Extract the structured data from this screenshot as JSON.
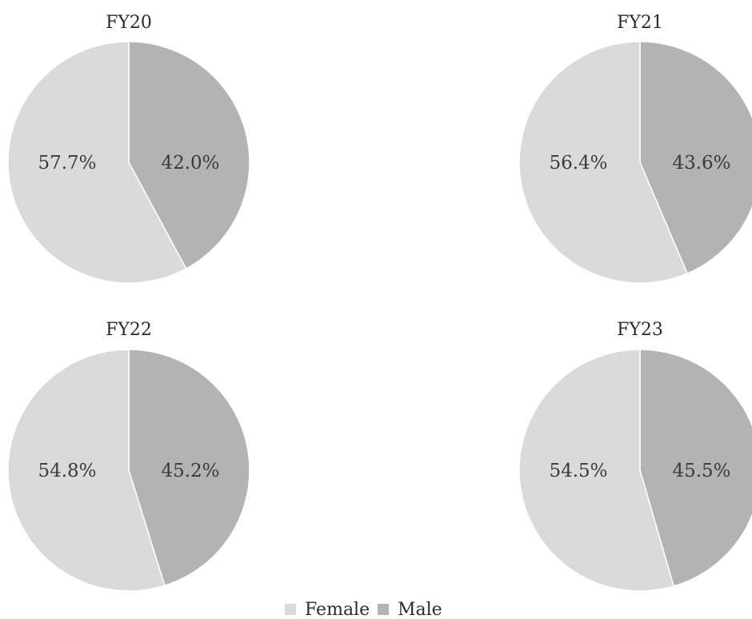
{
  "chart_data": [
    {
      "type": "pie",
      "title": "FY20",
      "slices": [
        {
          "label": "Female",
          "value": 57.7,
          "display": "57.7%"
        },
        {
          "label": "Male",
          "value": 42.0,
          "display": "42.0%"
        }
      ]
    },
    {
      "type": "pie",
      "title": "FY21",
      "slices": [
        {
          "label": "Female",
          "value": 56.4,
          "display": "56.4%"
        },
        {
          "label": "Male",
          "value": 43.6,
          "display": "43.6%"
        }
      ]
    },
    {
      "type": "pie",
      "title": "FY22",
      "slices": [
        {
          "label": "Female",
          "value": 54.8,
          "display": "54.8%"
        },
        {
          "label": "Male",
          "value": 45.2,
          "display": "45.2%"
        }
      ]
    },
    {
      "type": "pie",
      "title": "FY23",
      "slices": [
        {
          "label": "Female",
          "value": 54.5,
          "display": "54.5%"
        },
        {
          "label": "Male",
          "value": 45.5,
          "display": "45.5%"
        }
      ]
    }
  ],
  "legend": {
    "position": "bottom-center",
    "items": [
      {
        "label": "Female",
        "color": "#dadada"
      },
      {
        "label": "Male",
        "color": "#b3b3b3"
      }
    ]
  },
  "colors": {
    "Female": "#dadada",
    "Male": "#b3b3b3",
    "separator": "#ffffff"
  }
}
